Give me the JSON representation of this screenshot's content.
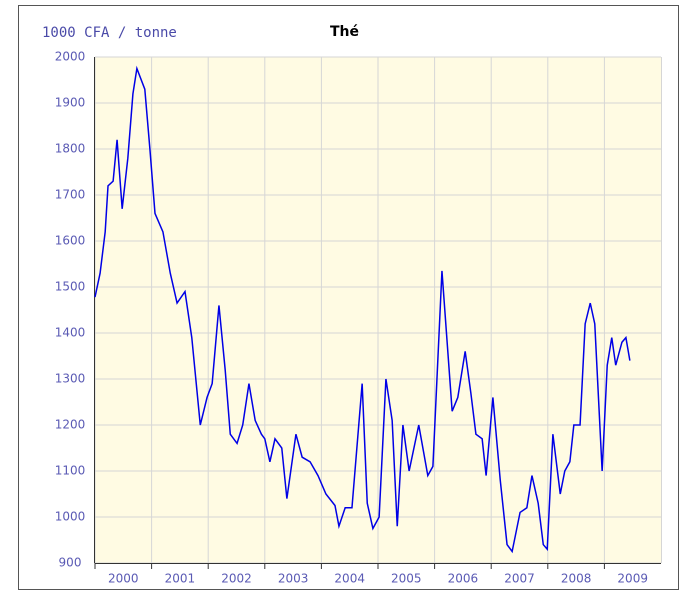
{
  "chart_data": {
    "type": "line",
    "title": "Thé",
    "y_label": "1000 CFA / tonne",
    "xlim": [
      2000,
      2010
    ],
    "xticks": [
      2000,
      2001,
      2002,
      2003,
      2004,
      2005,
      2006,
      2007,
      2008,
      2009
    ],
    "ylim": [
      900,
      2000
    ],
    "yticks": [
      900,
      1000,
      1100,
      1200,
      1300,
      1400,
      1500,
      1600,
      1700,
      1800,
      1900,
      2000
    ],
    "grid": true,
    "background": "#fffbe3",
    "series": [
      {
        "color": "#0000e6",
        "x": [
          2000.0,
          2000.09,
          2000.18,
          2000.23,
          2000.32,
          2000.39,
          2000.48,
          2000.58,
          2000.67,
          2000.74,
          2000.88,
          2000.97,
          2001.06,
          2001.2,
          2001.33,
          2001.45,
          2001.59,
          2001.71,
          2001.86,
          2001.98,
          2002.07,
          2002.19,
          2002.3,
          2002.39,
          2002.51,
          2002.61,
          2002.72,
          2002.83,
          2002.94,
          2003.0,
          2003.09,
          2003.18,
          2003.3,
          2003.39,
          2003.55,
          2003.66,
          2003.8,
          2003.94,
          2004.08,
          2004.24,
          2004.31,
          2004.42,
          2004.54,
          2004.72,
          2004.81,
          2004.91,
          2005.02,
          2005.14,
          2005.25,
          2005.34,
          2005.44,
          2005.55,
          2005.72,
          2005.88,
          2005.97,
          2006.13,
          2006.31,
          2006.41,
          2006.54,
          2006.64,
          2006.73,
          2006.84,
          2006.91,
          2007.03,
          2007.16,
          2007.28,
          2007.37,
          2007.51,
          2007.63,
          2007.72,
          2007.83,
          2007.92,
          2007.99,
          2008.09,
          2008.22,
          2008.3,
          2008.39,
          2008.46,
          2008.57,
          2008.66,
          2008.75,
          2008.83,
          2008.96,
          2009.05,
          2009.13,
          2009.2,
          2009.31,
          2009.38,
          2009.45
        ],
        "values": [
          1478,
          1530,
          1620,
          1720,
          1730,
          1820,
          1670,
          1780,
          1920,
          1975,
          1930,
          1800,
          1660,
          1620,
          1530,
          1465,
          1490,
          1390,
          1200,
          1260,
          1290,
          1460,
          1320,
          1180,
          1160,
          1200,
          1290,
          1210,
          1180,
          1170,
          1120,
          1170,
          1150,
          1040,
          1180,
          1130,
          1120,
          1090,
          1050,
          1025,
          980,
          1020,
          1020,
          1290,
          1030,
          975,
          1000,
          1300,
          1210,
          980,
          1200,
          1100,
          1200,
          1090,
          1110,
          1535,
          1230,
          1260,
          1360,
          1270,
          1180,
          1170,
          1090,
          1260,
          1080,
          940,
          925,
          1010,
          1020,
          1090,
          1030,
          940,
          930,
          1180,
          1050,
          1100,
          1120,
          1200,
          1200,
          1420,
          1465,
          1420,
          1100,
          1330,
          1390,
          1330,
          1380,
          1390,
          1340
        ]
      }
    ]
  }
}
